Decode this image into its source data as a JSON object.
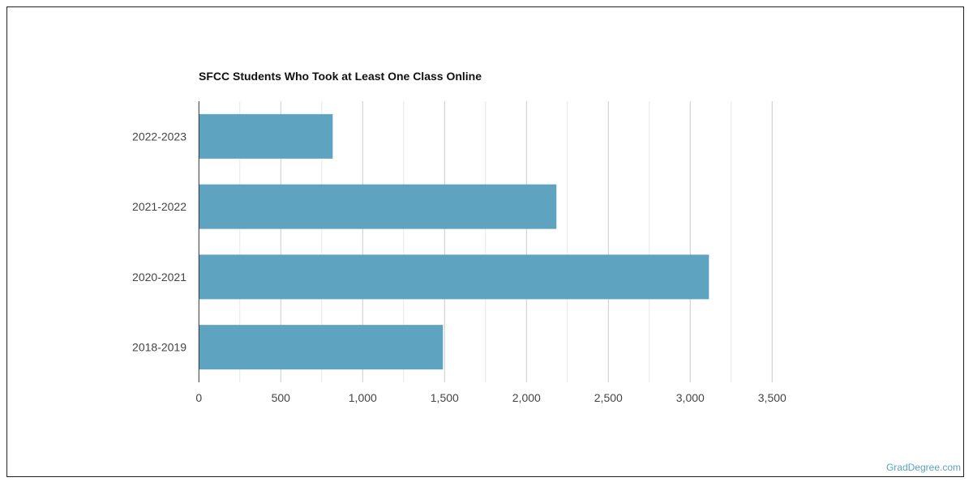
{
  "chart_data": {
    "type": "bar",
    "orientation": "horizontal",
    "title": "SFCC Students Who Took at Least One Class Online",
    "categories": [
      "2022-2023",
      "2021-2022",
      "2020-2021",
      "2018-2019"
    ],
    "values": [
      817,
      2183,
      3114,
      1490
    ],
    "xlabel": "",
    "ylabel": "",
    "xlim": [
      0,
      3500
    ],
    "xticks": [
      0,
      500,
      1000,
      1500,
      2000,
      2500,
      3000,
      3500
    ],
    "xtick_labels": [
      "0",
      "500",
      "1,000",
      "1,500",
      "2,000",
      "2,500",
      "3,000",
      "3,500"
    ],
    "grid": true,
    "bar_color": "#5ea3c0"
  },
  "credit": "GradDegree.com"
}
